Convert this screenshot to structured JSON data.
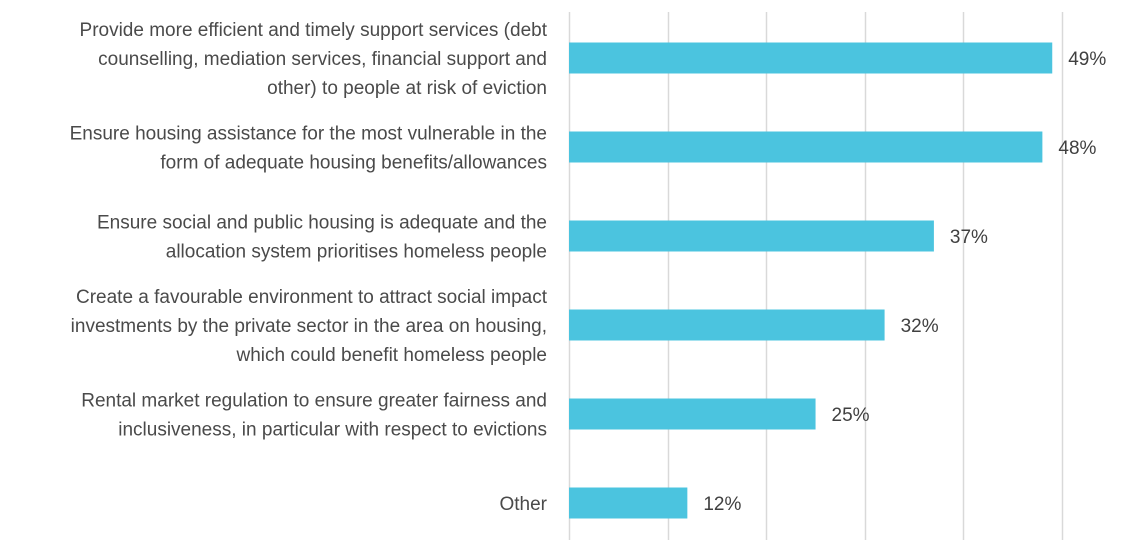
{
  "chart_data": {
    "type": "bar",
    "orientation": "horizontal",
    "categories": [
      [
        "Provide more efficient and timely support services (debt",
        "counselling, mediation services, financial support and",
        "other) to people at risk of eviction"
      ],
      [
        "Ensure housing assistance for the most vulnerable in the",
        "form of adequate housing benefits/allowances"
      ],
      [
        "Ensure social and public housing is adequate and the",
        "allocation system prioritises homeless people"
      ],
      [
        "Create a favourable environment to attract social impact",
        "investments by the private sector in the area on housing,",
        "which could benefit homeless people"
      ],
      [
        "Rental market regulation to ensure greater fairness and",
        "inclusiveness, in particular with respect to evictions"
      ],
      [
        "Other"
      ]
    ],
    "values": [
      49,
      48,
      37,
      32,
      25,
      12
    ],
    "value_labels": [
      "49%",
      "48%",
      "37%",
      "32%",
      "25%",
      "12%"
    ],
    "xlim": [
      0,
      58
    ],
    "gridline_step": 10,
    "grid": true,
    "title": "",
    "xlabel": "",
    "ylabel": "",
    "colors": {
      "bar": "#4BC4DF",
      "grid": "#D9D9D9",
      "category_text": "#4A4A4A",
      "value_text": "#404040"
    }
  }
}
